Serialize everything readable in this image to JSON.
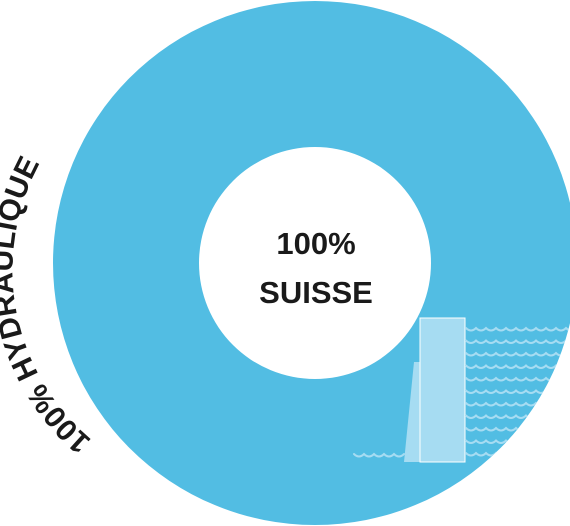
{
  "chart_data": {
    "type": "pie",
    "categories": [
      "Hydraulique"
    ],
    "values": [
      100
    ],
    "colors": {
      "ring": "#52bde3",
      "hole": "#ffffff",
      "dam": "#a6dcf2",
      "text": "#1a1a1a"
    },
    "center_line1": "100%",
    "center_line2": "SUISSE",
    "ring_label": "100% HYDRAULIQUE",
    "decoration": "dam-with-water-waves-icon"
  }
}
